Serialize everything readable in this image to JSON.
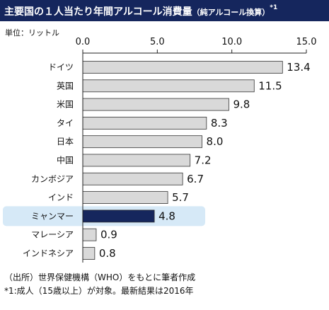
{
  "title": {
    "main": "主要国の１人当たり年間アルコール消費量",
    "sub": "（純アルコール換算）",
    "note_mark": "*1"
  },
  "unit_label": "単位：リットル",
  "footnotes": [
    "（出所）世界保健機構（WHO）をもとに筆者作成",
    "*1:成人（15歳以上）が対象。最新結果は2016年"
  ],
  "colors": {
    "title_background": "#15265d",
    "bar_default": "#d9d9d9",
    "bar_highlight": "#15265d",
    "row_highlight": "#d6e9f7"
  },
  "chart_data": {
    "type": "bar",
    "orientation": "horizontal",
    "categories": [
      "ドイツ",
      "英国",
      "米国",
      "タイ",
      "日本",
      "中国",
      "カンボジア",
      "インド",
      "ミャンマー",
      "マレーシア",
      "インドネシア"
    ],
    "values": [
      13.4,
      11.5,
      9.8,
      8.3,
      8.0,
      7.2,
      6.7,
      5.7,
      4.8,
      0.9,
      0.8
    ],
    "value_labels": [
      "13.4",
      "11.5",
      "9.8",
      "8.3",
      "8.0",
      "7.2",
      "6.7",
      "5.7",
      "4.8",
      "0.9",
      "0.8"
    ],
    "highlight": "ミャンマー",
    "xlim": [
      0,
      15
    ],
    "xticks": [
      0,
      5,
      10,
      15
    ],
    "xtick_labels": [
      "0.0",
      "5.0",
      "10.0",
      "15.0"
    ],
    "axis_position": "top",
    "grid": false,
    "legend": "none"
  }
}
